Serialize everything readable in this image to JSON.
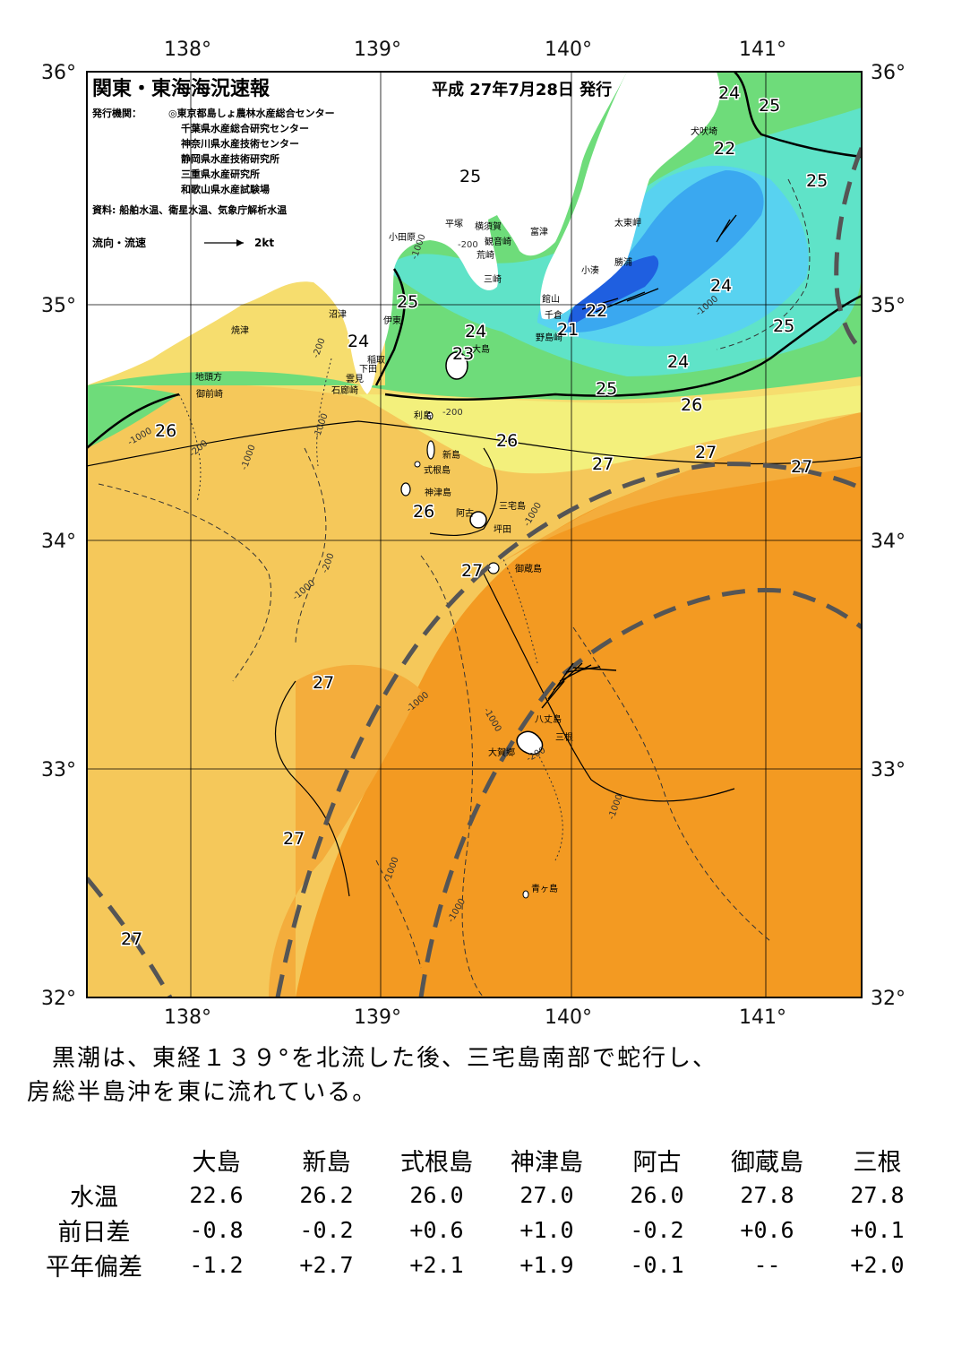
{
  "map": {
    "title": "関東・東海海況速報",
    "date": "平成 27年7月28日 発行",
    "publisher_label": "発行機関：",
    "publishers": [
      "◎東京都島しょ農林水産総合センター",
      "千葉県水産総合研究センター",
      "神奈川県水産技術センター",
      "静岡県水産技術研究所",
      "三重県水産研究所",
      "和歌山県水産試験場"
    ],
    "source": "資料: 船舶水温、衛星水温、気象庁解析水温",
    "legend_label": "流向・流速",
    "legend_speed": "2kt",
    "lon_labels": [
      "138°",
      "139°",
      "140°",
      "141°"
    ],
    "lat_labels": [
      "36°",
      "35°",
      "34°",
      "33°",
      "32°"
    ],
    "isotherm_labels": {
      "t21": "21",
      "t22": "22",
      "t23": "23",
      "t24": "24",
      "t25": "25",
      "t26": "26",
      "t27": "27"
    },
    "depth_labels": {
      "d200": "-200",
      "d1000": "-1000"
    },
    "places": {
      "inubosaki": "犬吠埼",
      "taito": "太東岬",
      "katsuura": "勝浦",
      "kominato": "小湊",
      "futtsu": "富津",
      "yokosuka": "横須賀",
      "kannonzaki": "観音崎",
      "arasaki": "荒崎",
      "misaki": "三崎",
      "hiratsuka": "平塚",
      "odawara": "小田原",
      "tateyama": "館山",
      "chikura": "千倉",
      "nojimazaki": "野島崎",
      "numazu": "沼津",
      "ito": "伊東",
      "inatori": "稲取",
      "shimoda": "下田",
      "kumomi": "雲見",
      "irozaki": "石廊崎",
      "yaizu": "焼津",
      "jitogata": "地頭方",
      "omaezaki": "御前崎",
      "oshima": "大島",
      "toshima": "利島",
      "niijima": "新島",
      "shikinejima": "式根島",
      "kozushima": "神津島",
      "miyakejima": "三宅島",
      "ako": "阿古",
      "tsubota": "坪田",
      "mikurajima": "御蔵島",
      "hachijojima": "八丈島",
      "mitsune": "三根",
      "okago": "大賀郷",
      "aogashima": "青ヶ島"
    },
    "colors": {
      "t21": "#1f5fe0",
      "t22": "#3aa8f0",
      "t23": "#58d2f0",
      "t24": "#5fe3c8",
      "t25": "#6edc7a",
      "t25b": "#a8ec78",
      "t26": "#f3f07c",
      "t26b": "#f6dd6e",
      "t27": "#f5c85a",
      "t27b": "#f4ad3c",
      "t28": "#f39a22",
      "land": "#ffffff",
      "kuroshio": "#555555"
    }
  },
  "summary": {
    "line1": "　黒潮は、東経１３９°を北流した後、三宅島南部で蛇行し、",
    "line2": "房総半島沖を東に流れている。"
  },
  "table": {
    "columns": [
      "大島",
      "新島",
      "式根島",
      "神津島",
      "阿古",
      "御蔵島",
      "三根"
    ],
    "rows": [
      {
        "label": "水温",
        "values": [
          "22.6",
          "26.2",
          "26.0",
          "27.0",
          "26.0",
          "27.8",
          "27.8"
        ]
      },
      {
        "label": "前日差",
        "values": [
          "-0.8",
          "-0.2",
          "+0.6",
          "+1.0",
          "-0.2",
          "+0.6",
          "+0.1"
        ]
      },
      {
        "label": "平年偏差",
        "values": [
          "-1.2",
          "+2.7",
          "+2.1",
          "+1.9",
          "-0.1",
          "--",
          "+2.0"
        ]
      }
    ]
  }
}
